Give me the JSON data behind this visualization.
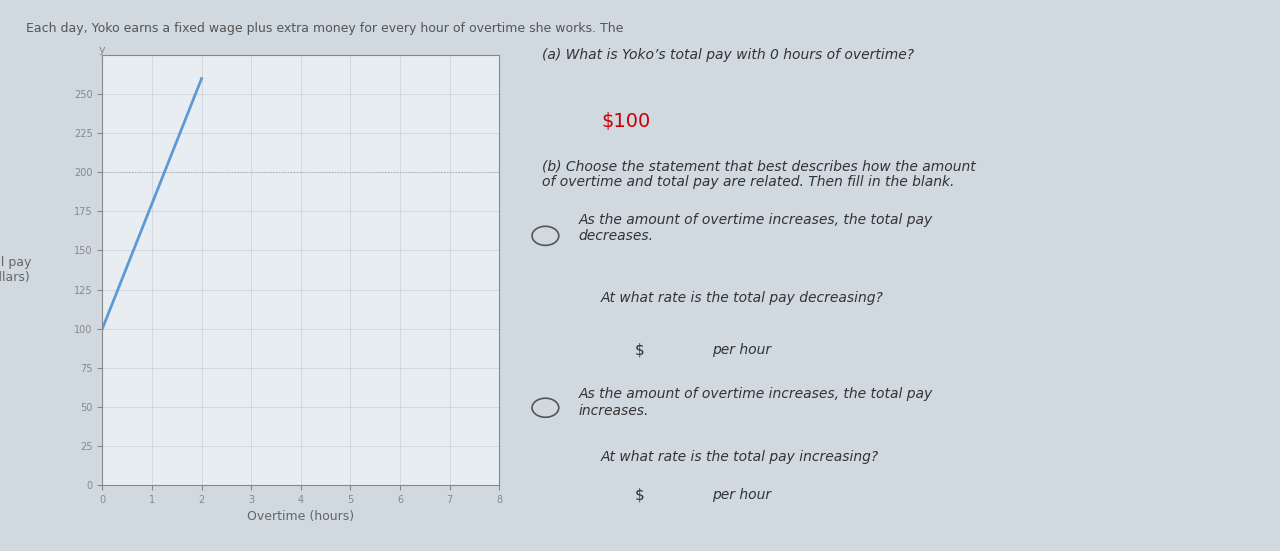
{
  "title_text": "Each day, Yoko earns a fixed wage plus extra money for every hour of overtime she works. The graph shows her total pay (in dollars) versus the amount of\novertime (in hours) that she works.",
  "graph_bg_color": "#e8edf2",
  "page_bg_color": "#d0d8e0",
  "line_x": [
    0,
    2
  ],
  "line_y": [
    100,
    260
  ],
  "line_color": "#5b9bd5",
  "line_width": 2.0,
  "dotted_line_y": 200,
  "dotted_line_x_end": 8,
  "dotted_color": "#aaaaaa",
  "xlabel": "Overtime (hours)",
  "ylabel": "Total pay\n(dollars)",
  "xlim": [
    0,
    8
  ],
  "ylim": [
    0,
    275
  ],
  "xticks": [
    0,
    1,
    2,
    3,
    4,
    5,
    6,
    7,
    8
  ],
  "yticks": [
    0,
    25,
    50,
    75,
    100,
    125,
    150,
    175,
    200,
    225,
    250
  ],
  "panel_bg": "#f0f0f0",
  "panel_title": "(a) What is Yoko’s total pay with 0 hours of overtime?",
  "answer_a": "$100",
  "panel_b_title": "(b) Choose the statement that best describes how the amount\nof overtime and total pay are related. Then fill in the blank.",
  "option1": "As the amount of overtime increases, the total pay\ndecreases.",
  "question1": "At what rate is the total pay decreasing?",
  "input1": "$ per hour",
  "option2": "As the amount of overtime increases, the total pay\nincreases.",
  "question2": "At what rate is the total pay increasing?",
  "input2": "$ per hour",
  "grid_color": "#c0c8d0",
  "tick_label_color": "#888888",
  "axis_label_color": "#666666"
}
